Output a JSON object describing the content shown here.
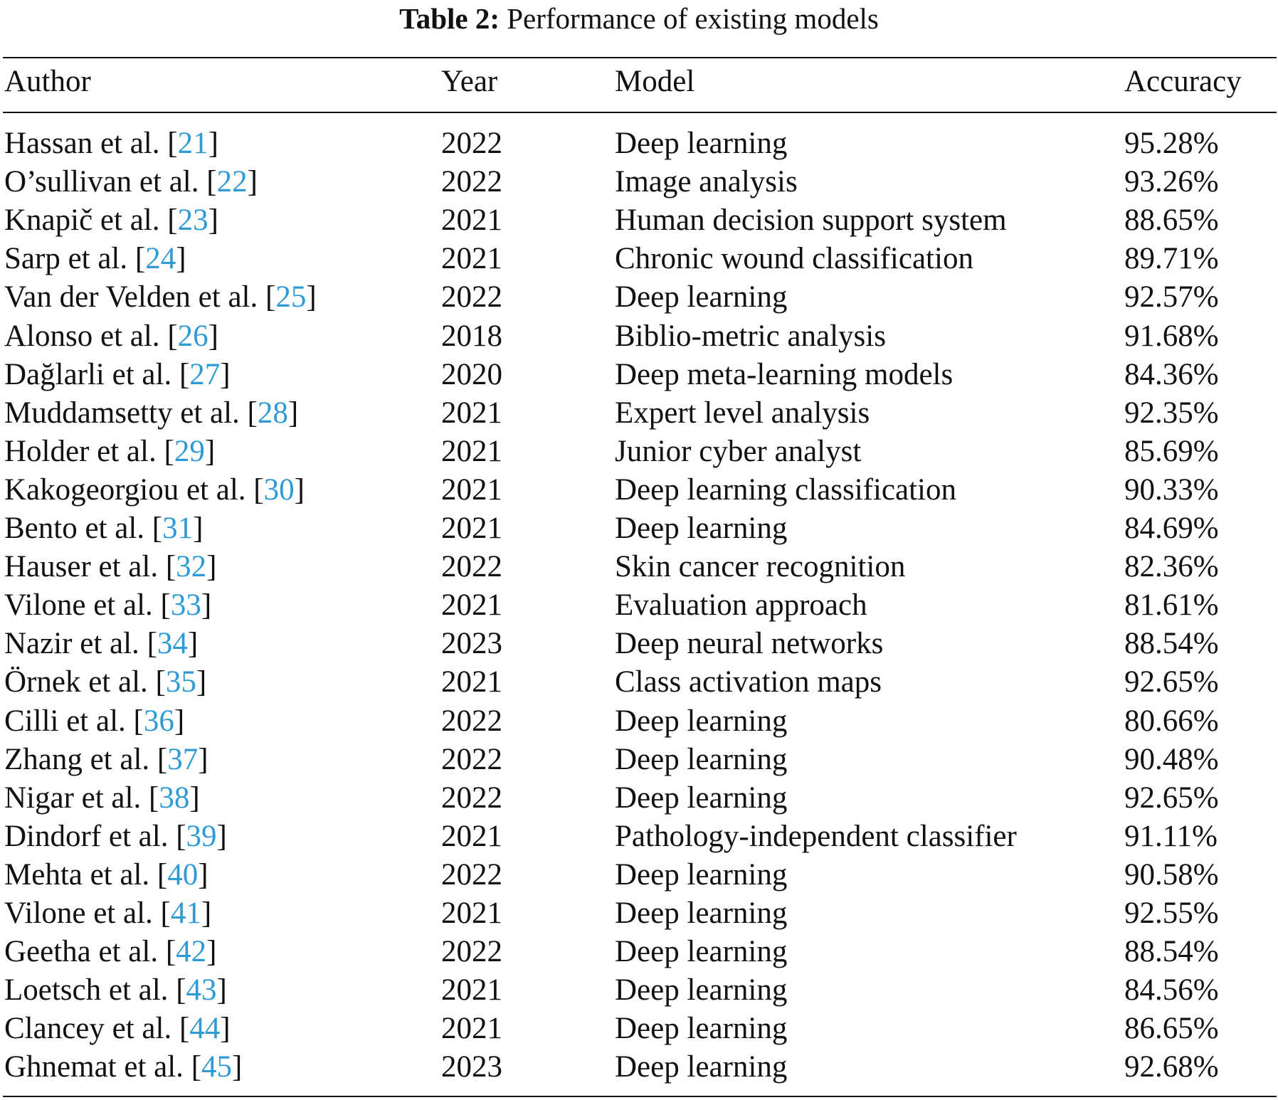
{
  "caption": {
    "label": "Table 2:",
    "text": "Performance of existing models"
  },
  "headers": {
    "author": "Author",
    "year": "Year",
    "model": "Model",
    "accuracy": "Accuracy"
  },
  "rows": [
    {
      "author": "Hassan et al.",
      "ref": "21",
      "year": "2022",
      "model": "Deep learning",
      "accuracy": "95.28%"
    },
    {
      "author": "O’sullivan et al.",
      "ref": "22",
      "year": "2022",
      "model": "Image analysis",
      "accuracy": "93.26%"
    },
    {
      "author": "Knapič et al.",
      "ref": "23",
      "year": "2021",
      "model": "Human decision support system",
      "accuracy": "88.65%"
    },
    {
      "author": "Sarp et al.",
      "ref": "24",
      "year": "2021",
      "model": "Chronic wound classification",
      "accuracy": "89.71%"
    },
    {
      "author": "Van der Velden et al.",
      "ref": "25",
      "year": "2022",
      "model": "Deep learning",
      "accuracy": "92.57%"
    },
    {
      "author": "Alonso et al.",
      "ref": "26",
      "year": "2018",
      "model": "Biblio-metric analysis",
      "accuracy": "91.68%"
    },
    {
      "author": "Dağlarli et al.",
      "ref": "27",
      "year": "2020",
      "model": "Deep meta-learning models",
      "accuracy": "84.36%"
    },
    {
      "author": "Muddamsetty et al.",
      "ref": "28",
      "year": "2021",
      "model": "Expert level analysis",
      "accuracy": "92.35%"
    },
    {
      "author": "Holder et al.",
      "ref": "29",
      "year": "2021",
      "model": "Junior cyber analyst",
      "accuracy": "85.69%"
    },
    {
      "author": "Kakogeorgiou et al.",
      "ref": "30",
      "year": "2021",
      "model": "Deep learning classification",
      "accuracy": "90.33%"
    },
    {
      "author": "Bento et al.",
      "ref": "31",
      "year": "2021",
      "model": "Deep learning",
      "accuracy": "84.69%"
    },
    {
      "author": "Hauser et al.",
      "ref": "32",
      "year": "2022",
      "model": "Skin cancer recognition",
      "accuracy": "82.36%"
    },
    {
      "author": "Vilone et al.",
      "ref": "33",
      "year": "2021",
      "model": "Evaluation approach",
      "accuracy": "81.61%"
    },
    {
      "author": "Nazir et al.",
      "ref": "34",
      "year": "2023",
      "model": "Deep neural networks",
      "accuracy": "88.54%"
    },
    {
      "author": "Örnek et al.",
      "ref": "35",
      "year": "2021",
      "model": "Class activation maps",
      "accuracy": "92.65%"
    },
    {
      "author": "Cilli et al.",
      "ref": "36",
      "year": "2022",
      "model": "Deep learning",
      "accuracy": "80.66%"
    },
    {
      "author": "Zhang et al.",
      "ref": "37",
      "year": "2022",
      "model": "Deep learning",
      "accuracy": "90.48%"
    },
    {
      "author": "Nigar et al.",
      "ref": "38",
      "year": "2022",
      "model": "Deep learning",
      "accuracy": "92.65%"
    },
    {
      "author": "Dindorf et al.",
      "ref": "39",
      "year": "2021",
      "model": "Pathology-independent classifier",
      "accuracy": "91.11%"
    },
    {
      "author": "Mehta et al.",
      "ref": "40",
      "year": "2022",
      "model": "Deep learning",
      "accuracy": "90.58%"
    },
    {
      "author": "Vilone et al.",
      "ref": "41",
      "year": "2021",
      "model": "Deep learning",
      "accuracy": "92.55%"
    },
    {
      "author": "Geetha et al.",
      "ref": "42",
      "year": "2022",
      "model": "Deep learning",
      "accuracy": "88.54%"
    },
    {
      "author": "Loetsch et al.",
      "ref": "43",
      "year": "2021",
      "model": "Deep learning",
      "accuracy": "84.56%"
    },
    {
      "author": "Clancey et al.",
      "ref": "44",
      "year": "2021",
      "model": "Deep learning",
      "accuracy": "86.65%"
    },
    {
      "author": "Ghnemat et al.",
      "ref": "45",
      "year": "2023",
      "model": "Deep learning",
      "accuracy": "92.68%"
    }
  ],
  "colors": {
    "text": "#111111",
    "reference_link": "#2e9bd6",
    "rule": "#111111"
  }
}
